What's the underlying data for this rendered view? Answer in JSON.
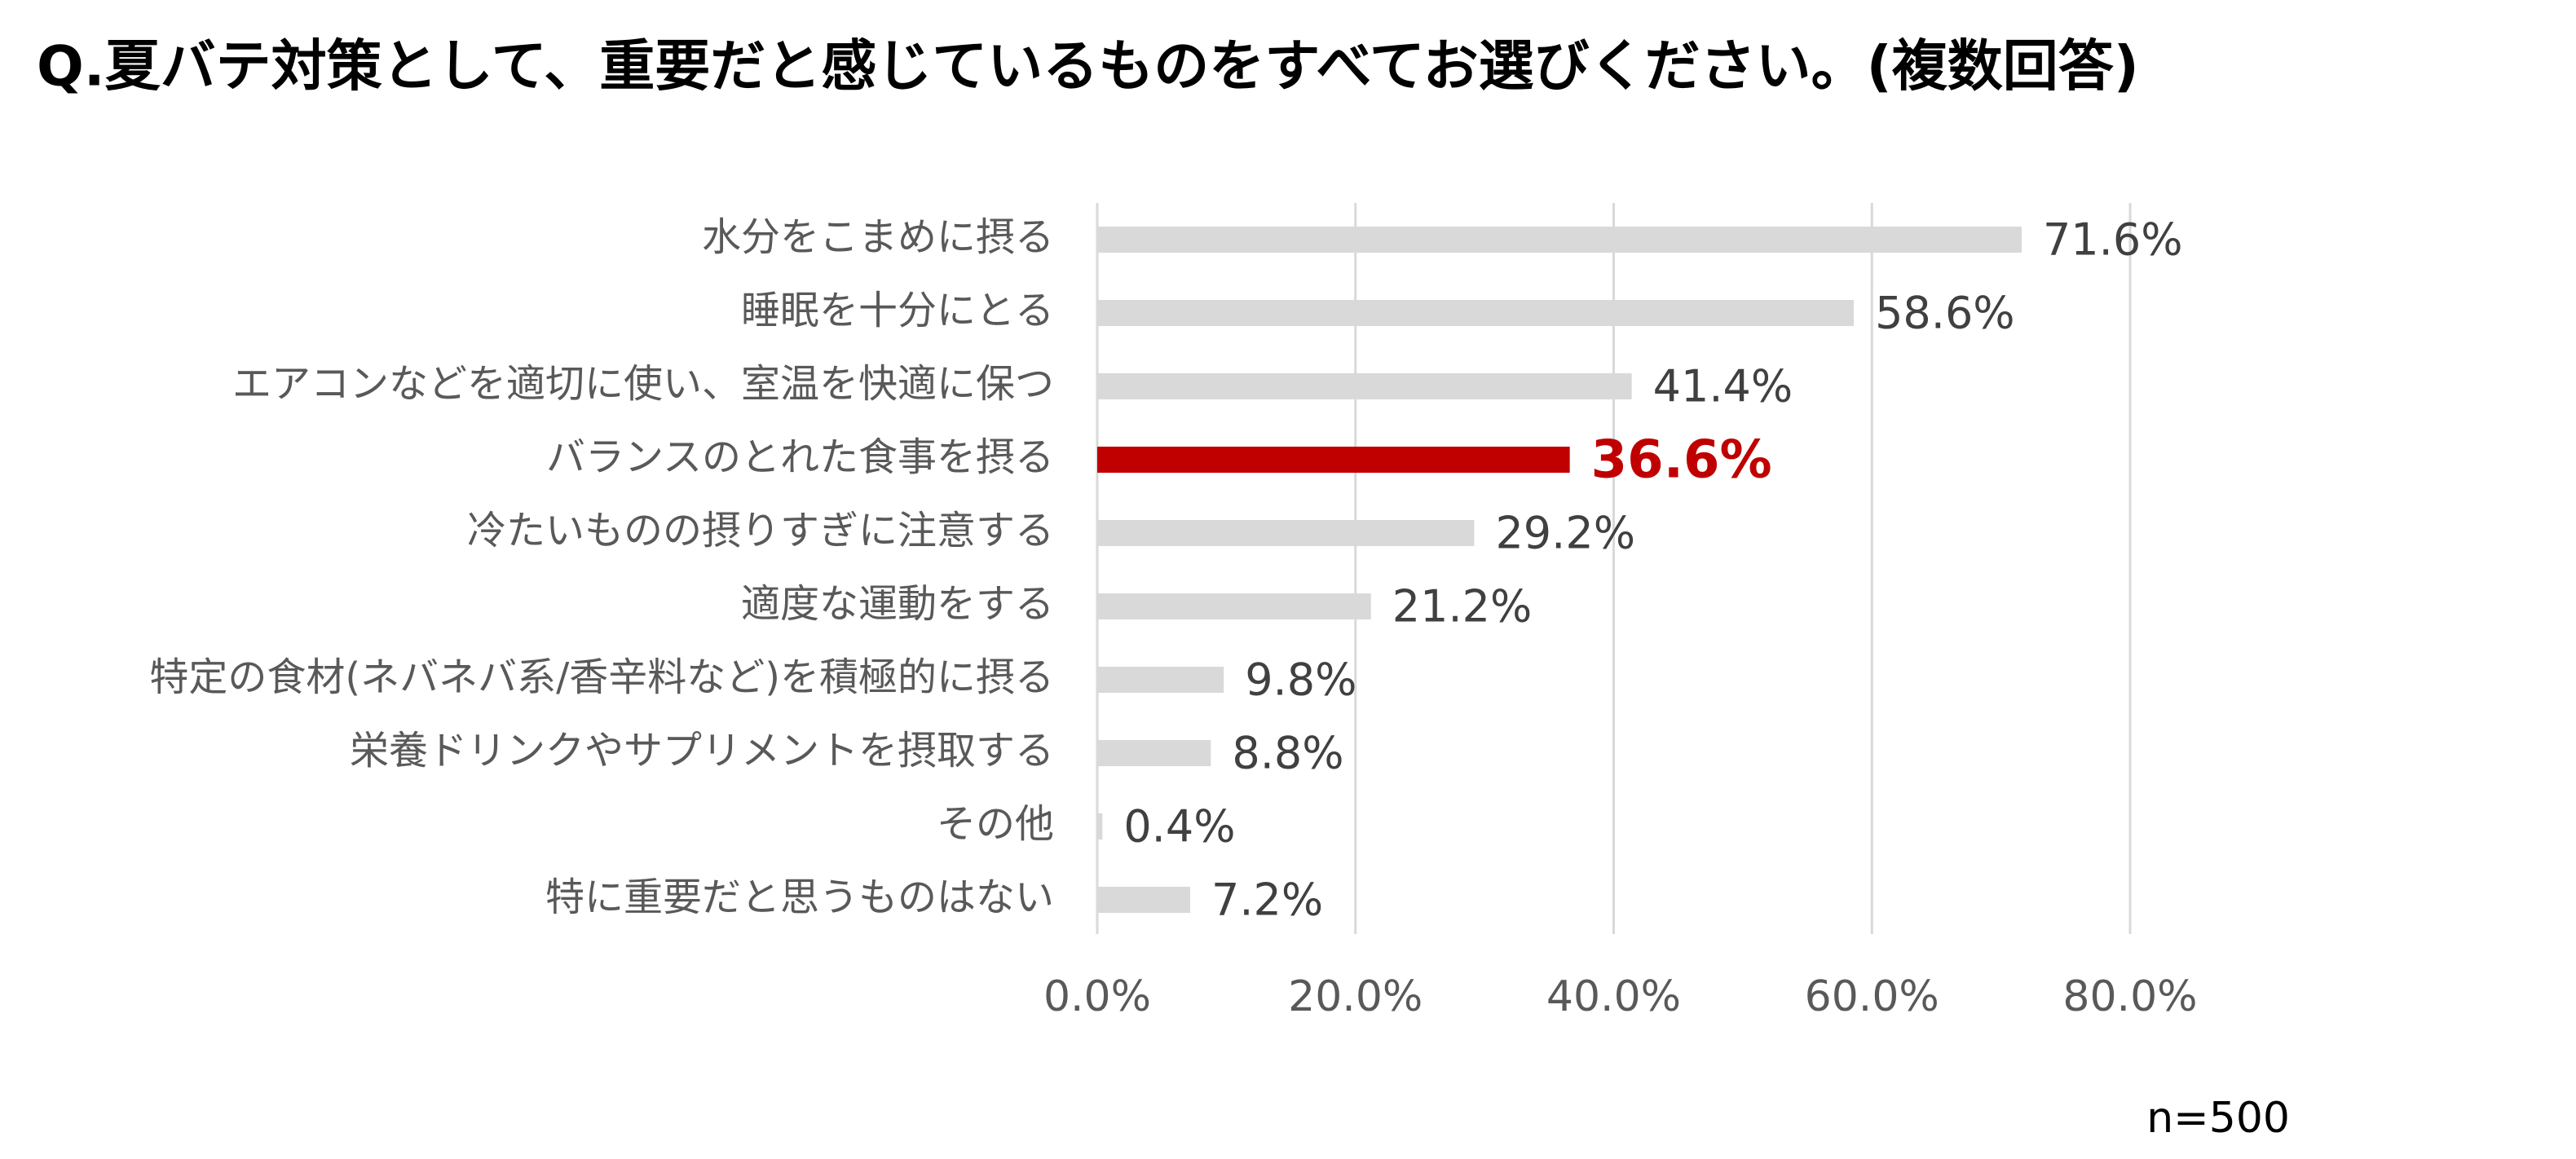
{
  "chart_data": {
    "type": "bar",
    "orientation": "horizontal",
    "title": "Q.夏バテ対策として、重要だと感じているものをすべてお選びください。(複数回答)",
    "note": "n=500",
    "categories": [
      "水分をこまめに摂る",
      "睡眠を十分にとる",
      "エアコンなどを適切に使い、室温を快適に保つ",
      "バランスのとれた食事を摂る",
      "冷たいものの摂りすぎに注意する",
      "適度な運動をする",
      "特定の食材(ネバネバ系/香辛料など)を積極的に摂る",
      "栄養ドリンクやサプリメントを摂取する",
      "その他",
      "特に重要だと思うものはない"
    ],
    "values": [
      71.6,
      58.6,
      41.4,
      36.6,
      29.2,
      21.2,
      9.8,
      8.8,
      0.4,
      7.2
    ],
    "value_labels": [
      "71.6%",
      "58.6%",
      "41.4%",
      "36.6%",
      "29.2%",
      "21.2%",
      "9.8%",
      "8.8%",
      "0.4%",
      "7.2%"
    ],
    "color": "#d9d9d9",
    "highlight": {
      "index": 3,
      "color": "#c00000"
    },
    "xlim": [
      0,
      80
    ],
    "xticks": [
      {
        "value": 0,
        "label": "0.0%"
      },
      {
        "value": 20,
        "label": "20.0%"
      },
      {
        "value": 40,
        "label": "40.0%"
      },
      {
        "value": 60,
        "label": "60.0%"
      },
      {
        "value": 80,
        "label": "80.0%"
      }
    ],
    "grid": true
  }
}
